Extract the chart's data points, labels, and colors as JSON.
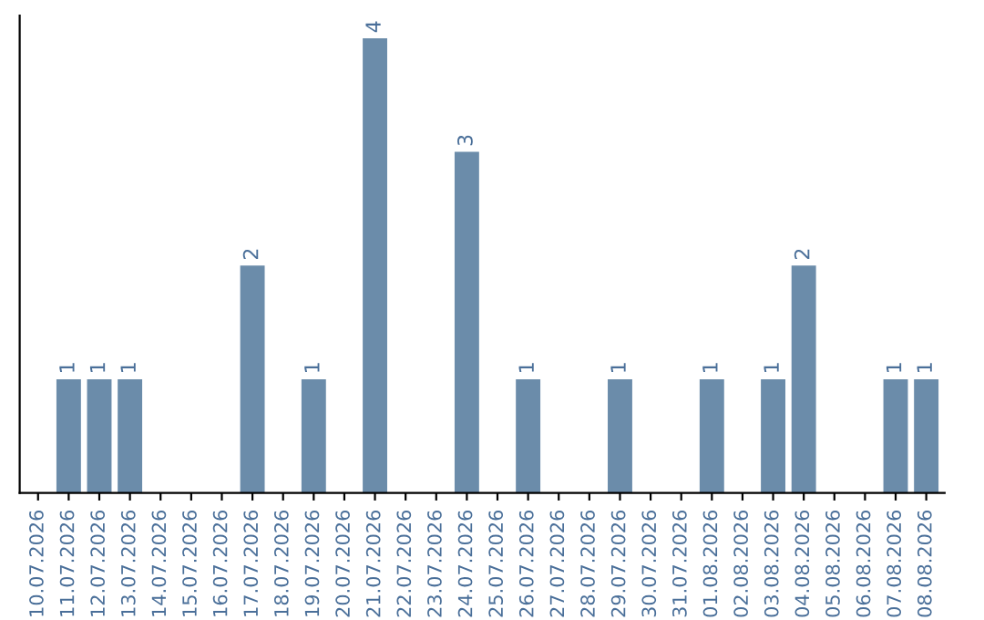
{
  "chart_data": {
    "type": "bar",
    "categories": [
      "10.07.2026",
      "11.07.2026",
      "12.07.2026",
      "13.07.2026",
      "14.07.2026",
      "15.07.2026",
      "16.07.2026",
      "17.07.2026",
      "18.07.2026",
      "19.07.2026",
      "20.07.2026",
      "21.07.2026",
      "22.07.2026",
      "23.07.2026",
      "24.07.2026",
      "25.07.2026",
      "26.07.2026",
      "27.07.2026",
      "28.07.2026",
      "29.07.2026",
      "30.07.2026",
      "31.07.2026",
      "01.08.2026",
      "02.08.2026",
      "03.08.2026",
      "04.08.2026",
      "05.08.2026",
      "06.08.2026",
      "07.08.2026",
      "08.08.2026"
    ],
    "values": [
      0,
      1,
      1,
      1,
      0,
      0,
      0,
      2,
      0,
      1,
      0,
      4,
      0,
      0,
      3,
      0,
      1,
      0,
      0,
      1,
      0,
      0,
      1,
      0,
      1,
      2,
      0,
      0,
      1,
      1
    ],
    "value_labels": [
      null,
      "1",
      "1",
      "1",
      null,
      null,
      null,
      "2",
      null,
      "1",
      null,
      "4",
      null,
      null,
      "3",
      null,
      "1",
      null,
      null,
      "1",
      null,
      null,
      "1",
      null,
      "1",
      "2",
      null,
      null,
      "1",
      "1"
    ],
    "color": "#6b8caa",
    "tick_labels": "x",
    "grid": false,
    "legend": false
  }
}
